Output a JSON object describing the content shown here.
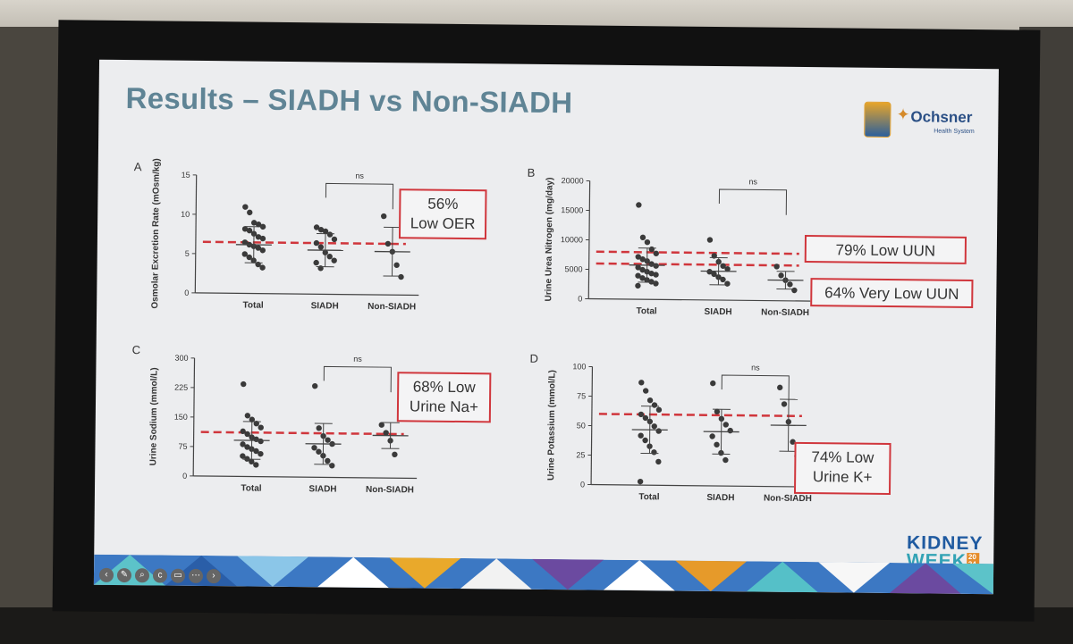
{
  "slide": {
    "title": "Results – SIADH vs Non-SIADH",
    "logo_text": "Ochsner",
    "logo_sub": "Health System",
    "event_logo": [
      "KIDNEY",
      "WEEK",
      "2024"
    ]
  },
  "toolbar_icons": [
    "back-icon",
    "pen-icon",
    "zoom-icon",
    "captions-icon",
    "screen-icon",
    "more-icon",
    "forward-icon"
  ],
  "colors": {
    "title": "#5f8495",
    "threshold": "#d0363c",
    "dots": "#3a3a3a",
    "callout_border": "#d0363c"
  },
  "chart_data": [
    {
      "type": "scatter",
      "panel": "A",
      "ylabel": "Osmolar Excretion Rate (mOsm/kg)",
      "ylim": [
        0,
        15
      ],
      "yticks": [
        0,
        5,
        10,
        15
      ],
      "categories": [
        "Total",
        "SIADH",
        "Non-SIADH"
      ],
      "points": [
        [
          11,
          10.3,
          9,
          8.8,
          8.5,
          8.2,
          8,
          7.6,
          7.2,
          7,
          6.5,
          6.2,
          6,
          5.8,
          5.5,
          5,
          4.6,
          4.2,
          3.7,
          3.3
        ],
        [
          8.5,
          8.2,
          8,
          7.6,
          7,
          6.5,
          6,
          5.3,
          4.8,
          4.3,
          4,
          3.3
        ],
        [
          10,
          6.5,
          5.5,
          3.8,
          2.3
        ]
      ],
      "mean": [
        6.2,
        5.6,
        5.5
      ],
      "sd": [
        2.3,
        2.1,
        3.1
      ],
      "threshold": 6.5,
      "comparison": "ns",
      "callout": [
        "56%",
        "Low OER"
      ]
    },
    {
      "type": "scatter",
      "panel": "B",
      "ylabel": "Urine Urea Nitrogen (mg/day)",
      "ylim": [
        0,
        20000
      ],
      "yticks": [
        0,
        5000,
        10000,
        15000,
        20000
      ],
      "categories": [
        "Total",
        "SIADH",
        "Non-SIADH"
      ],
      "points": [
        [
          16000,
          10500,
          9700,
          8500,
          7800,
          7200,
          6800,
          6500,
          6000,
          5700,
          5400,
          5000,
          4700,
          4400,
          4200,
          4000,
          3600,
          3300,
          3000,
          2700,
          2300
        ],
        [
          10200,
          7500,
          6500,
          5800,
          5300,
          4800,
          4400,
          3900,
          3500,
          2800
        ],
        [
          5800,
          4300,
          3500,
          2800,
          1800
        ]
      ],
      "mean": [
        5800,
        4900,
        3500
      ],
      "sd": [
        2900,
        2300,
        1500
      ],
      "threshold": [
        8000,
        6000
      ],
      "comparison": "ns",
      "callout": [
        "79% Low UUN",
        "64% Very Low UUN"
      ]
    },
    {
      "type": "scatter",
      "panel": "C",
      "ylabel": "Urine Sodium (mmol/L)",
      "ylim": [
        0,
        300
      ],
      "yticks": [
        0,
        75,
        150,
        225,
        300
      ],
      "categories": [
        "Total",
        "SIADH",
        "Non-SIADH"
      ],
      "points": [
        [
          235,
          155,
          145,
          135,
          125,
          115,
          108,
          100,
          95,
          90,
          82,
          75,
          70,
          65,
          58,
          52,
          45,
          38,
          30
        ],
        [
          232,
          125,
          105,
          95,
          85,
          75,
          65,
          55,
          42,
          30
        ],
        [
          135,
          115,
          95,
          60
        ]
      ],
      "mean": [
        92,
        85,
        108
      ],
      "sd": [
        48,
        52,
        33
      ],
      "threshold": 112,
      "comparison": "ns",
      "callout": [
        "68% Low",
        "Urine Na+"
      ]
    },
    {
      "type": "scatter",
      "panel": "D",
      "ylabel": "Urine Potassium (mmol/L)",
      "ylim": [
        0,
        100
      ],
      "yticks": [
        0,
        25,
        50,
        75,
        100
      ],
      "categories": [
        "Total",
        "SIADH",
        "Non-SIADH"
      ],
      "points": [
        [
          87,
          80,
          72,
          68,
          64,
          60,
          57,
          54,
          50,
          46,
          42,
          38,
          33,
          28,
          20,
          3
        ],
        [
          87,
          63,
          57,
          52,
          47,
          42,
          35,
          28,
          22
        ],
        [
          84,
          70,
          55,
          38,
          26
        ]
      ],
      "mean": [
        47,
        46,
        52
      ],
      "sd": [
        20,
        19,
        22
      ],
      "threshold": 60,
      "comparison": "ns",
      "callout": [
        "74% Low",
        "Urine K+"
      ]
    }
  ]
}
